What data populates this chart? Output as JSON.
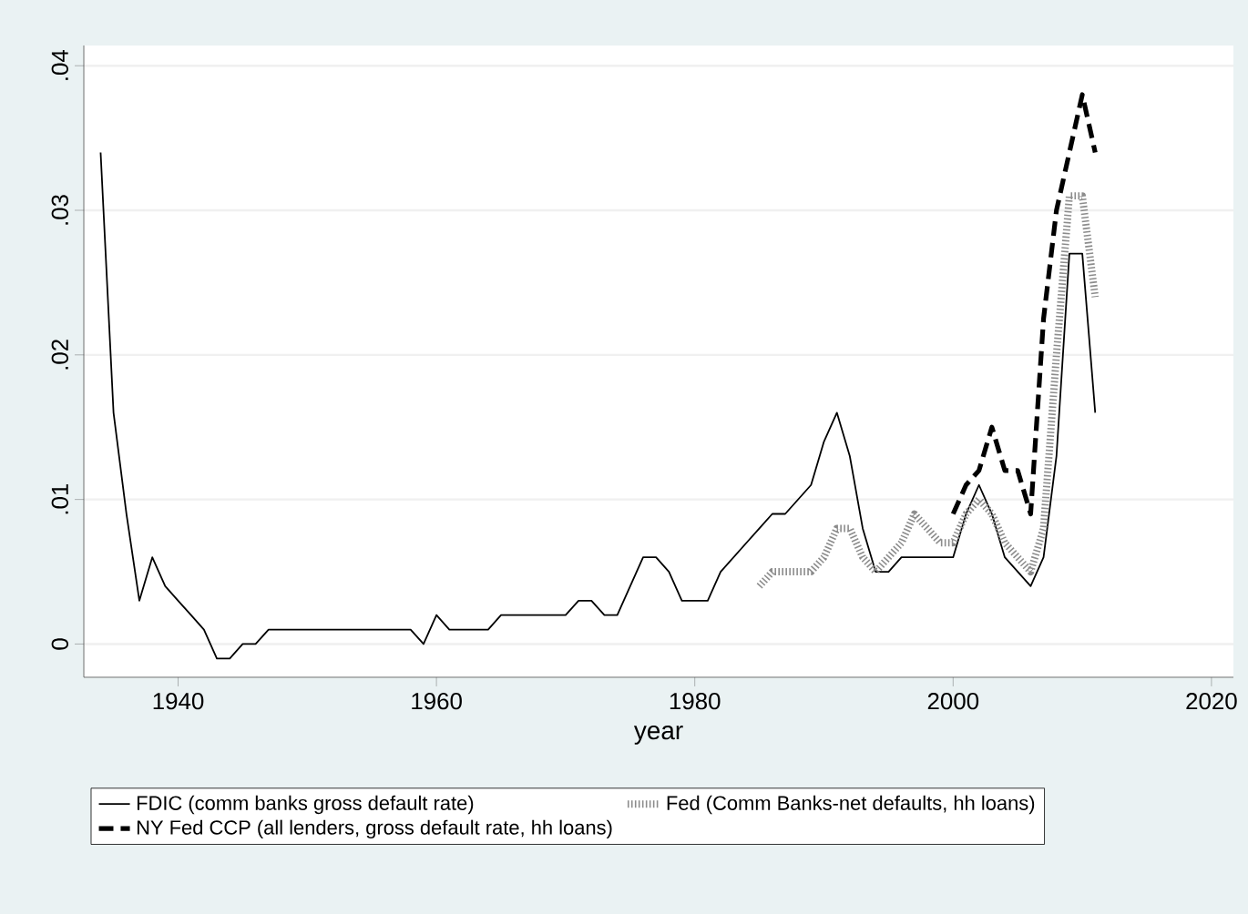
{
  "chart_data": {
    "type": "line",
    "xlabel": "year",
    "xlim": [
      1932.7,
      2021.7
    ],
    "ylim": [
      -0.0023,
      0.0414
    ],
    "xticks": [
      1940,
      1960,
      1980,
      2000,
      2020
    ],
    "yticks": [
      {
        "value": 0,
        "label": "0"
      },
      {
        "value": 0.01,
        "label": ".01"
      },
      {
        "value": 0.02,
        "label": ".02"
      },
      {
        "value": 0.03,
        "label": ".03"
      },
      {
        "value": 0.04,
        "label": ".04"
      }
    ],
    "grid": "y",
    "legend": "bottom",
    "marker": "none",
    "series": [
      {
        "name": "FDIC (comm banks gross default rate)",
        "color": "#000000",
        "line_style": "solid",
        "x": [
          1934,
          1935,
          1936,
          1937,
          1938,
          1939,
          1940,
          1941,
          1942,
          1943,
          1944,
          1945,
          1946,
          1947,
          1948,
          1949,
          1950,
          1951,
          1952,
          1953,
          1954,
          1955,
          1956,
          1957,
          1958,
          1959,
          1960,
          1961,
          1962,
          1963,
          1964,
          1965,
          1966,
          1967,
          1968,
          1969,
          1970,
          1971,
          1972,
          1973,
          1974,
          1975,
          1976,
          1977,
          1978,
          1979,
          1980,
          1981,
          1982,
          1983,
          1984,
          1985,
          1986,
          1987,
          1988,
          1989,
          1990,
          1991,
          1992,
          1993,
          1994,
          1995,
          1996,
          1997,
          1998,
          1999,
          2000,
          2001,
          2002,
          2003,
          2004,
          2005,
          2006,
          2007,
          2008,
          2009,
          2010,
          2011
        ],
        "values": [
          0.034,
          0.016,
          0.009,
          0.003,
          0.006,
          0.004,
          0.003,
          0.002,
          0.001,
          -0.001,
          -0.001,
          0,
          0,
          0.001,
          0.001,
          0.001,
          0.001,
          0.001,
          0.001,
          0.001,
          0.001,
          0.001,
          0.001,
          0.001,
          0.001,
          0,
          0.002,
          0.001,
          0.001,
          0.001,
          0.001,
          0.002,
          0.002,
          0.002,
          0.002,
          0.002,
          0.002,
          0.003,
          0.003,
          0.002,
          0.002,
          0.004,
          0.006,
          0.006,
          0.005,
          0.003,
          0.003,
          0.003,
          0.005,
          0.006,
          0.007,
          0.008,
          0.009,
          0.009,
          0.01,
          0.011,
          0.014,
          0.016,
          0.013,
          0.008,
          0.005,
          0.005,
          0.006,
          0.006,
          0.006,
          0.006,
          0.006,
          0.009,
          0.011,
          0.009,
          0.006,
          0.005,
          0.004,
          0.006,
          0.013,
          0.027,
          0.027,
          0.016
        ]
      },
      {
        "name": "Fed (Comm Banks-net defaults, hh loans)",
        "color": "#8c8c8c",
        "line_style": "dotted",
        "x": [
          1985,
          1986,
          1987,
          1988,
          1989,
          1990,
          1991,
          1992,
          1993,
          1994,
          1995,
          1996,
          1997,
          1998,
          1999,
          2000,
          2001,
          2002,
          2003,
          2004,
          2005,
          2006,
          2007,
          2008,
          2009,
          2010,
          2011
        ],
        "values": [
          0.004,
          0.005,
          0.005,
          0.005,
          0.005,
          0.006,
          0.008,
          0.008,
          0.006,
          0.005,
          0.006,
          0.007,
          0.009,
          0.008,
          0.007,
          0.007,
          0.009,
          0.01,
          0.009,
          0.007,
          0.006,
          0.005,
          0.008,
          0.02,
          0.031,
          0.031,
          0.024
        ]
      },
      {
        "name": "NY Fed CCP (all lenders, gross default rate, hh loans)",
        "color": "#000000",
        "line_style": "dashed",
        "x": [
          2000,
          2001,
          2002,
          2003,
          2004,
          2005,
          2006,
          2007,
          2008,
          2009,
          2010,
          2011
        ],
        "values": [
          0.009,
          0.011,
          0.012,
          0.015,
          0.012,
          0.012,
          0.009,
          0.0225,
          0.03,
          0.034,
          0.038,
          0.034
        ]
      }
    ]
  }
}
